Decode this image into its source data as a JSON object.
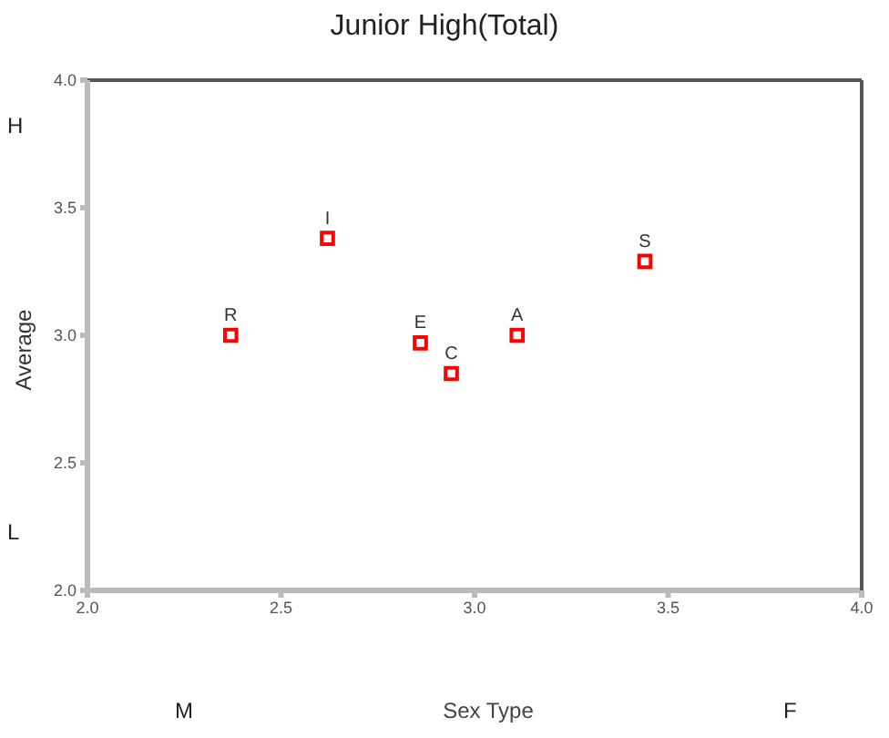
{
  "chart_data": {
    "type": "scatter",
    "title": "Junior High(Total)",
    "xlabel": "Sex Type",
    "ylabel": "Average",
    "x": [
      2.37,
      2.62,
      2.86,
      2.94,
      3.11,
      3.44
    ],
    "values": [
      3.0,
      3.38,
      2.97,
      2.85,
      3.0,
      3.29
    ],
    "color": "#ff0000",
    "marker": "square",
    "xlim": [
      2.0,
      4.0
    ],
    "ylim": [
      2.0,
      4.0
    ],
    "xticks": [
      {
        "value": 2,
        "label": "2.0"
      },
      {
        "value": 2.5,
        "label": "2.5"
      },
      {
        "value": 3,
        "label": "3.0"
      },
      {
        "value": 3.5,
        "label": "3.5"
      },
      {
        "value": 4,
        "label": "4.0"
      }
    ],
    "yticks": [
      {
        "value": 2,
        "label": "2.0"
      },
      {
        "value": 2.5,
        "label": "2.5"
      },
      {
        "value": 3,
        "label": "3.0"
      },
      {
        "value": 3.5,
        "label": "3.5"
      },
      {
        "value": 4,
        "label": "4.0"
      }
    ],
    "annotations": [
      {
        "text": "R",
        "x": 2.37,
        "y": 3.0
      },
      {
        "text": "I",
        "x": 2.62,
        "y": 3.38
      },
      {
        "text": "E",
        "x": 2.86,
        "y": 2.97
      },
      {
        "text": "C",
        "x": 2.94,
        "y": 2.85
      },
      {
        "text": "A",
        "x": 3.11,
        "y": 3.0
      },
      {
        "text": "S",
        "x": 3.44,
        "y": 3.29
      },
      "H",
      "L",
      "M",
      "F"
    ]
  }
}
